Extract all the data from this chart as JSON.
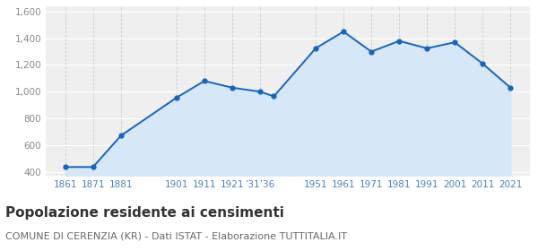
{
  "years": [
    1861,
    1871,
    1881,
    1901,
    1911,
    1921,
    1931,
    1936,
    1951,
    1961,
    1971,
    1981,
    1991,
    2001,
    2011,
    2021
  ],
  "population": [
    435,
    435,
    670,
    955,
    1080,
    1030,
    1000,
    965,
    1325,
    1450,
    1300,
    1380,
    1325,
    1370,
    1210,
    1030
  ],
  "y_ticks": [
    400,
    600,
    800,
    1000,
    1200,
    1400,
    1600
  ],
  "ylim": [
    370,
    1640
  ],
  "xlim_left": 1854,
  "xlim_right": 2028,
  "line_color": "#1565c0",
  "fill_color": "#d6e8f7",
  "marker_color": "#1565c0",
  "bg_color": "#efefef",
  "grid_color_h": "#ffffff",
  "grid_color_v": "#cccccc",
  "title": "Popolazione residente ai censimenti",
  "subtitle": "COMUNE DI CERENZIA (KR) - Dati ISTAT - Elaborazione TUTTITALIA.IT",
  "title_fontsize": 11,
  "subtitle_fontsize": 8,
  "tick_color": "#4a7fc1",
  "ytick_color": "#888888",
  "tick_fontsize": 7.5,
  "ytick_fontsize": 7.5
}
